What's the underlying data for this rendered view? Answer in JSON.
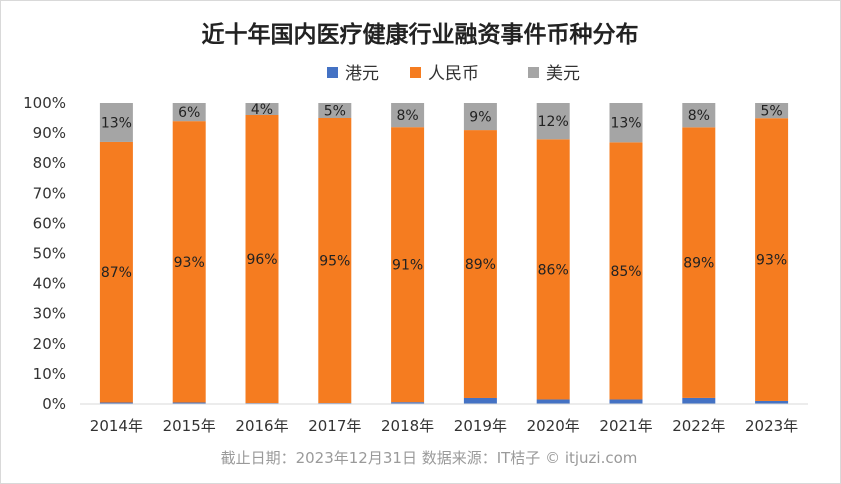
{
  "chart_data": {
    "type": "bar",
    "stacked": true,
    "percent": true,
    "title": "近十年国内医疗健康行业融资事件币种分布",
    "categories": [
      "2014年",
      "2015年",
      "2016年",
      "2017年",
      "2018年",
      "2019年",
      "2020年",
      "2021年",
      "2022年",
      "2023年"
    ],
    "series": [
      {
        "name": "港元",
        "color": "#4472c4",
        "values": [
          0.5,
          0.5,
          0.3,
          0.3,
          0.6,
          2.0,
          1.5,
          1.5,
          2.0,
          1.0
        ],
        "labels": [
          "",
          "",
          "",
          "",
          "",
          "",
          "",
          "",
          "",
          ""
        ]
      },
      {
        "name": "人民币",
        "color": "#f57c20",
        "values": [
          87,
          93,
          96,
          95,
          91,
          89,
          86,
          85,
          89,
          93
        ],
        "labels": [
          "87%",
          "93%",
          "96%",
          "95%",
          "91%",
          "89%",
          "86%",
          "85%",
          "89%",
          "93%"
        ]
      },
      {
        "name": "美元",
        "color": "#a5a5a5",
        "values": [
          13,
          6,
          4,
          5,
          8,
          9,
          12,
          13,
          8,
          5
        ],
        "labels": [
          "13%",
          "6%",
          "4%",
          "5%",
          "8%",
          "9%",
          "12%",
          "13%",
          "8%",
          "5%"
        ]
      }
    ],
    "yticks": [
      "0%",
      "10%",
      "20%",
      "30%",
      "40%",
      "50%",
      "60%",
      "70%",
      "80%",
      "90%",
      "100%"
    ],
    "ylim": [
      0,
      100
    ],
    "grid": false,
    "legend_position": "top"
  },
  "source_note": "截止日期：2023年12月31日    数据来源：IT桔子 © itjuzi.com"
}
